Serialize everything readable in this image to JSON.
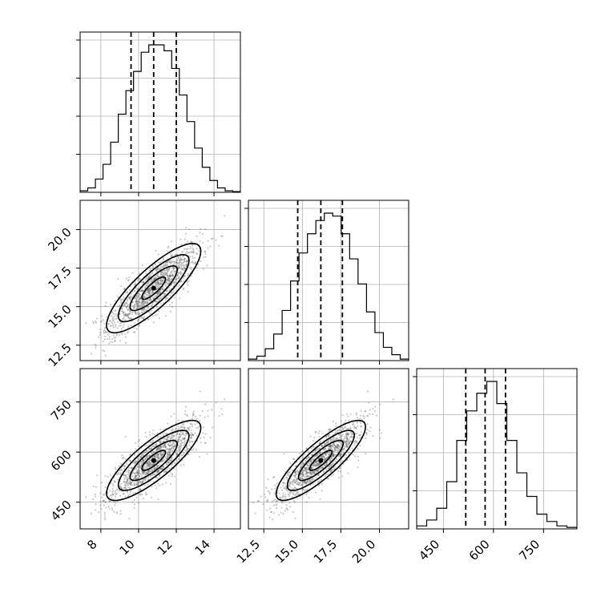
{
  "chart_data": {
    "type": "corner",
    "params": [
      {
        "ticks": [
          8,
          10,
          12,
          14
        ],
        "tick_labels": [
          "8",
          "10",
          "12",
          "14"
        ],
        "lim": [
          6.9,
          15.4
        ],
        "mean": 10.8,
        "sd": 1.25,
        "quantiles": [
          9.6,
          10.8,
          12.0
        ],
        "hist_counts": [
          1,
          3,
          9,
          19,
          34,
          53,
          69,
          82,
          95,
          100,
          100,
          96,
          84,
          66,
          48,
          30,
          17,
          8,
          3,
          1,
          0.5
        ]
      },
      {
        "ticks": [
          12.5,
          15.0,
          17.5,
          20.0
        ],
        "tick_labels": [
          "12.5",
          "15.0",
          "17.5",
          "20.0"
        ],
        "lim": [
          11.5,
          21.9
        ],
        "mean": 16.2,
        "sd": 1.45,
        "quantiles": [
          14.7,
          16.2,
          17.6
        ],
        "hist_counts": [
          1,
          3,
          8,
          18,
          34,
          54,
          73,
          86,
          95,
          100,
          98,
          86,
          69,
          52,
          33,
          19,
          9,
          4,
          1
        ]
      },
      {
        "ticks": [
          450,
          600,
          750
        ],
        "tick_labels": [
          "450",
          "600",
          "750"
        ],
        "lim": [
          370,
          850
        ],
        "mean": 575,
        "sd": 60,
        "quantiles": [
          517,
          575,
          636
        ],
        "hist_counts": [
          2,
          6,
          14,
          32,
          60,
          80,
          92,
          100,
          85,
          60,
          38,
          22,
          10,
          5,
          2,
          1
        ]
      }
    ],
    "correlations": {
      "p1_p0": 0.83,
      "p2_p0": 0.82,
      "p2_p1": 0.84
    },
    "contour_sigmas": [
      0.5,
      1.0,
      1.5,
      2.0
    ],
    "grid": true
  }
}
